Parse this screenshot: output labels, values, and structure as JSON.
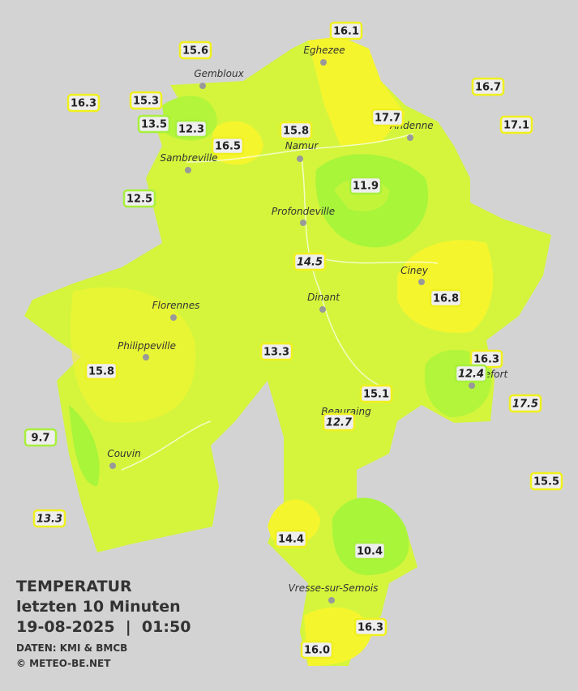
{
  "header": {
    "title": "TEMPERATUR",
    "subtitle": "letzten 10 Minuten",
    "datetime": "19-08-2025  |  01:50",
    "source": "DATEN: KMI & BMCB",
    "copyright": "© METEO-BE.NET"
  },
  "towns": [
    "Eghezee",
    "Gembloux",
    "Andenne",
    "Namur",
    "Sambreville",
    "Profondeville",
    "Ciney",
    "Dinant",
    "Florennes",
    "Philippeville",
    "Rochefort",
    "Beauraing",
    "Couvin",
    "Vresse-sur-Semois"
  ],
  "stations": [
    "16.1",
    "15.6",
    "16.7",
    "16.3",
    "15.3",
    "17.7",
    "17.1",
    "13.5",
    "12.3",
    "15.8",
    "16.5",
    "11.9",
    "12.5",
    "14.5",
    "16.8",
    "13.3",
    "16.3",
    "12.4",
    "15.8",
    "15.1",
    "17.5",
    "12.7",
    "9.7",
    "15.5",
    "13.3",
    "14.4",
    "10.4",
    "16.3",
    "16.0"
  ]
}
